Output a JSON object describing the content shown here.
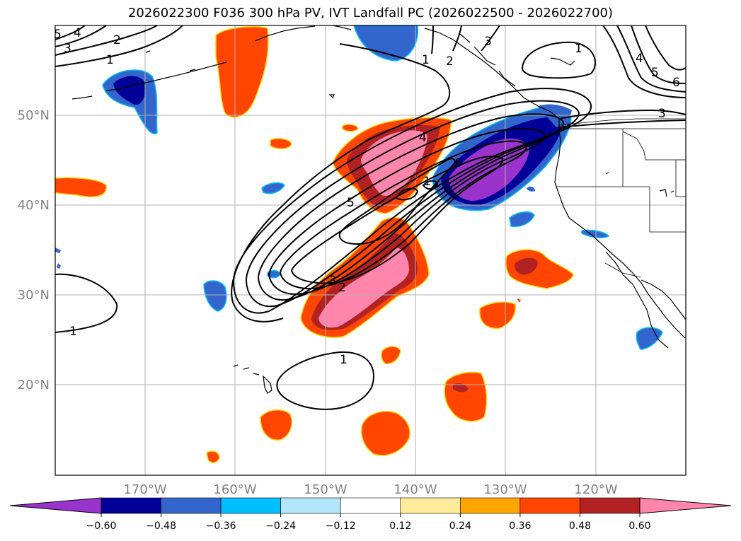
{
  "title": "2026022300 F036 300 hPa PV, IVT Landfall PC (2026022500 - 2026022700)",
  "lat_labels": [
    "50°N",
    "40°N",
    "30°N",
    "20°N"
  ],
  "lon_labels": [
    "170°W",
    "160°W",
    "150°W",
    "140°W",
    "130°W",
    "120°W"
  ],
  "colorbar": {
    "colors": [
      "#9933cc",
      "#000099",
      "#3366cc",
      "#00bfff",
      "#b3e5fc",
      "#ffffff",
      "#ffeb99",
      "#ffa500",
      "#ff4500",
      "#b22222",
      "#ff85ad"
    ],
    "extend_min_color": "#9933cc",
    "extend_max_color": "#ff85ad",
    "tick_labels": [
      "−0.60",
      "−0.48",
      "−0.36",
      "−0.24",
      "−0.12",
      "0.12",
      "0.24",
      "0.36",
      "0.48",
      "0.60"
    ]
  },
  "contour_labels": [
    "5",
    "4",
    "3",
    "2",
    "1",
    "1",
    "2",
    "3",
    "1",
    "4",
    "5",
    "6",
    "3",
    "1",
    "5",
    "4",
    "6",
    "3",
    "2",
    "1",
    "1"
  ],
  "fill_colors": {
    "neg_strong": "#9933cc",
    "neg_mid": "#000099",
    "neg_weak": "#3366cc",
    "neg_light": "#00bfff",
    "pos_orange": "#ff4500",
    "pos_red": "#b22222",
    "pos_pink": "#ff85ad",
    "pos_yellow": "#ffd700"
  }
}
